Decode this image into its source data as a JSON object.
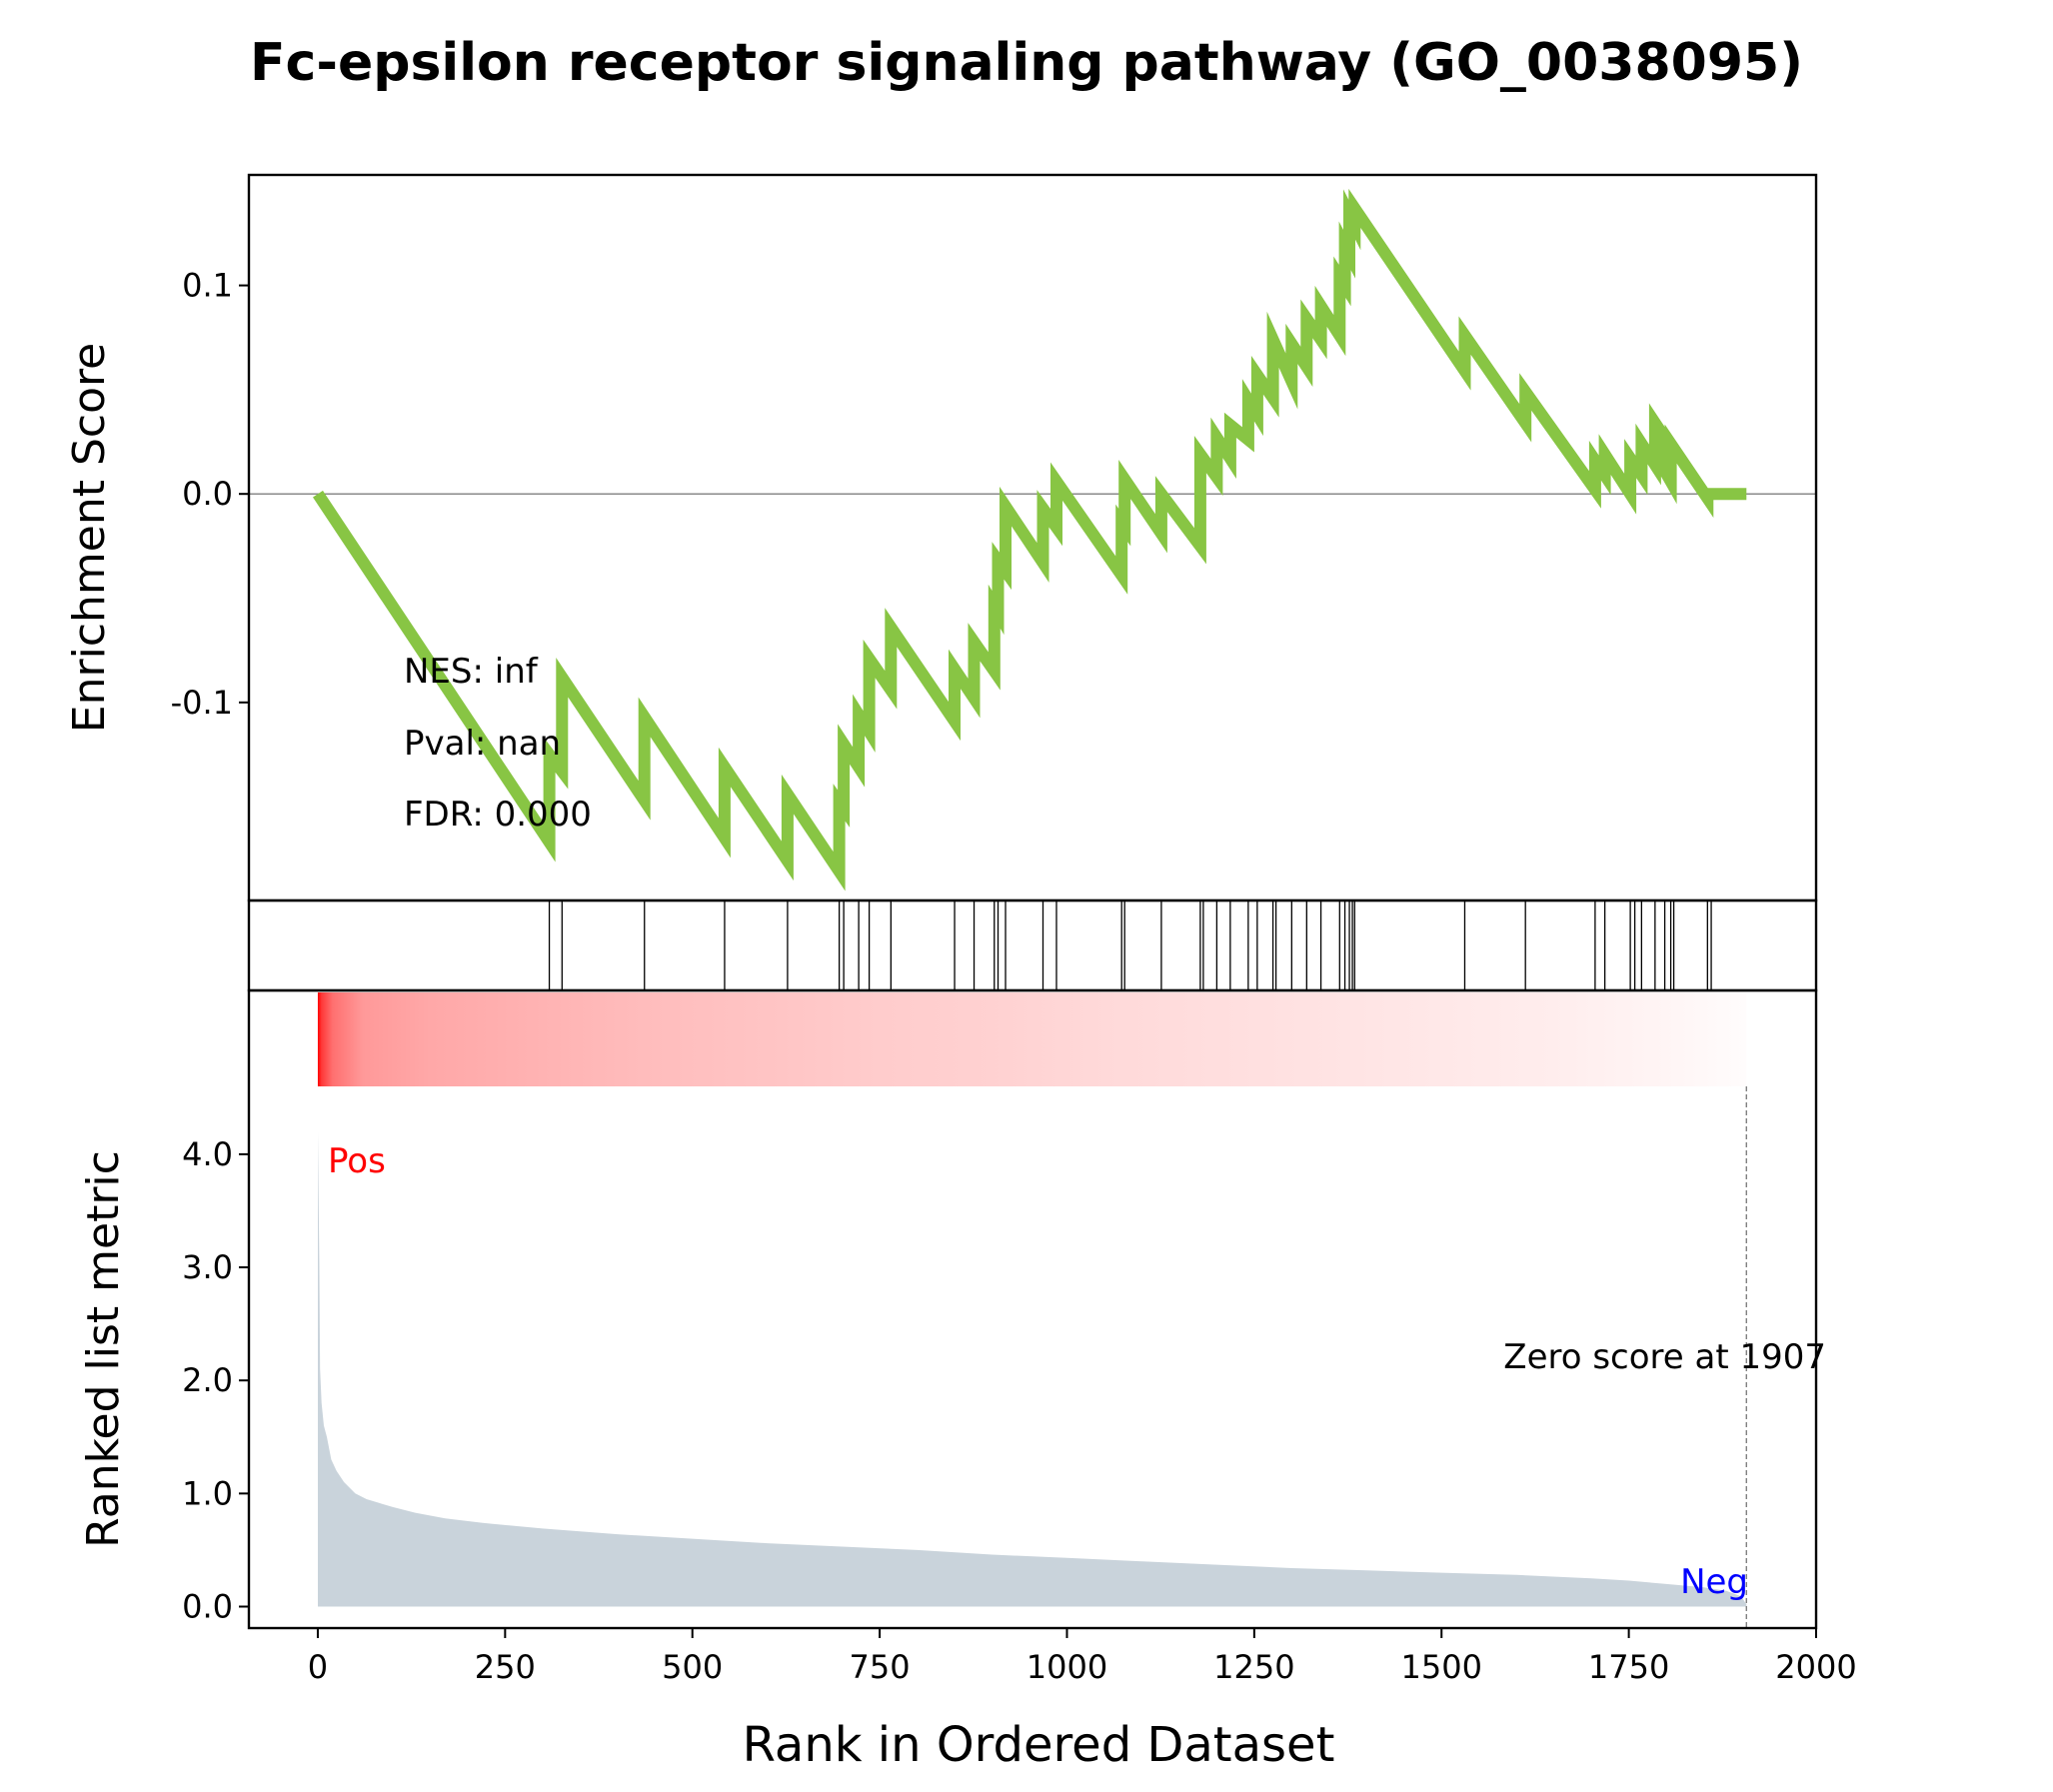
{
  "figure": {
    "title": "Fc-epsilon receptor signaling pathway (GO_0038095)",
    "annotations": {
      "nes": "NES: inf",
      "pval": "Pval: nan",
      "fdr": "FDR: 0.000",
      "pos": "Pos",
      "neg": "Neg",
      "zero_score": "Zero score at 1907"
    },
    "colors": {
      "es_line": "#88C544",
      "metric_fill": "#C9D3DB",
      "pos_label": "#FF0000",
      "neg_label": "#0000FF",
      "heat_start": "#FF0000",
      "heat_end": "#FFFFFF"
    }
  },
  "chart_data": [
    {
      "type": "line",
      "name": "enrichment-score",
      "ylabel": "Enrichment Score",
      "xlim": [
        -92,
        2000
      ],
      "ylim": [
        -0.195,
        0.153
      ],
      "yticks": [
        0.1,
        0.0,
        -0.1
      ],
      "ytick_labels": [
        "0.1",
        "0.0",
        "-0.1"
      ],
      "hline": 0.0,
      "x": [
        0,
        309,
        309,
        326,
        326,
        436,
        436,
        543,
        543,
        627,
        627,
        696,
        696,
        702,
        702,
        722,
        722,
        736,
        736,
        765,
        765,
        850,
        850,
        876,
        876,
        903,
        903,
        908,
        908,
        918,
        918,
        968,
        968,
        986,
        986,
        1073,
        1073,
        1077,
        1077,
        1126,
        1126,
        1178,
        1178,
        1200,
        1200,
        1218,
        1218,
        1242,
        1242,
        1254,
        1254,
        1275,
        1275,
        1300,
        1300,
        1320,
        1320,
        1339,
        1339,
        1364,
        1364,
        1371,
        1371,
        1377,
        1377,
        1384,
        1384,
        1531,
        1531,
        1612,
        1612,
        1705,
        1705,
        1718,
        1718,
        1752,
        1752,
        1767,
        1767,
        1785,
        1785,
        1798,
        1798,
        1806,
        1806,
        1855,
        1855,
        1907
      ],
      "y": [
        0.0,
        -0.167,
        -0.125,
        -0.133,
        -0.088,
        -0.147,
        -0.107,
        -0.165,
        -0.131,
        -0.176,
        -0.144,
        -0.181,
        -0.148,
        -0.151,
        -0.12,
        -0.131,
        -0.106,
        -0.114,
        -0.079,
        -0.094,
        -0.064,
        -0.109,
        -0.084,
        -0.098,
        -0.071,
        -0.085,
        -0.054,
        -0.057,
        -0.032,
        -0.037,
        -0.006,
        -0.033,
        -0.007,
        -0.016,
        0.006,
        -0.039,
        -0.014,
        -0.016,
        0.007,
        -0.019,
        0.0,
        -0.025,
        0.019,
        0.008,
        0.027,
        0.017,
        0.033,
        0.026,
        0.045,
        0.038,
        0.057,
        0.046,
        0.074,
        0.054,
        0.072,
        0.061,
        0.084,
        0.074,
        0.09,
        0.076,
        0.104,
        0.1,
        0.119,
        0.115,
        0.134,
        0.129,
        0.137,
        0.059,
        0.076,
        0.034,
        0.049,
        0.002,
        0.016,
        0.009,
        0.019,
        0.0,
        0.017,
        0.009,
        0.024,
        0.014,
        0.034,
        0.027,
        0.011,
        0.006,
        0.024,
        -0.002,
        0.0,
        0.0
      ]
    },
    {
      "type": "hits",
      "name": "gene-set-hits",
      "xlim": [
        -92,
        2000
      ],
      "x": [
        309,
        326,
        436,
        543,
        627,
        696,
        702,
        722,
        736,
        765,
        850,
        876,
        903,
        908,
        918,
        968,
        986,
        1073,
        1077,
        1126,
        1178,
        1182,
        1200,
        1218,
        1242,
        1254,
        1275,
        1279,
        1300,
        1320,
        1339,
        1364,
        1371,
        1377,
        1381,
        1384,
        1531,
        1612,
        1705,
        1718,
        1752,
        1758,
        1767,
        1785,
        1798,
        1806,
        1810,
        1855,
        1860
      ]
    },
    {
      "type": "heatmap",
      "name": "rank-heatmap",
      "xlim": [
        -92,
        2000
      ],
      "range": [
        0,
        1907
      ],
      "stops": [
        [
          0,
          1.0
        ],
        [
          5,
          0.78
        ],
        [
          20,
          0.56
        ],
        [
          60,
          0.4
        ],
        [
          150,
          0.34
        ],
        [
          300,
          0.3
        ],
        [
          450,
          0.26
        ],
        [
          600,
          0.23
        ],
        [
          750,
          0.2
        ],
        [
          900,
          0.18
        ],
        [
          1050,
          0.15
        ],
        [
          1200,
          0.13
        ],
        [
          1350,
          0.11
        ],
        [
          1500,
          0.09
        ],
        [
          1650,
          0.07
        ],
        [
          1800,
          0.04
        ],
        [
          1907,
          0.01
        ]
      ]
    },
    {
      "type": "area",
      "name": "ranked-list-metric",
      "xlabel": "Rank in Ordered Dataset",
      "ylabel": "Ranked list metric",
      "xlim": [
        -92,
        2000
      ],
      "ylim": [
        -0.19,
        4.6
      ],
      "xticks": [
        0,
        250,
        500,
        750,
        1000,
        1250,
        1500,
        1750,
        2000
      ],
      "xtick_labels": [
        "0",
        "250",
        "500",
        "750",
        "1000",
        "1250",
        "1500",
        "1750",
        "2000"
      ],
      "yticks": [
        0.0,
        1.0,
        2.0,
        3.0,
        4.0
      ],
      "ytick_labels": [
        "0.0",
        "1.0",
        "2.0",
        "3.0",
        "4.0"
      ],
      "zero_line_x": 1907,
      "x": [
        0,
        2,
        3,
        5,
        8,
        12,
        18,
        25,
        35,
        50,
        65,
        80,
        100,
        130,
        170,
        220,
        300,
        400,
        500,
        600,
        700,
        800,
        900,
        1000,
        1100,
        1200,
        1300,
        1400,
        1500,
        1600,
        1700,
        1750,
        1800,
        1850,
        1880,
        1900,
        1907
      ],
      "y": [
        4.2,
        3.0,
        2.1,
        1.8,
        1.6,
        1.5,
        1.3,
        1.2,
        1.1,
        1.0,
        0.95,
        0.92,
        0.88,
        0.83,
        0.78,
        0.74,
        0.69,
        0.64,
        0.6,
        0.56,
        0.53,
        0.5,
        0.46,
        0.43,
        0.4,
        0.37,
        0.34,
        0.32,
        0.3,
        0.28,
        0.25,
        0.23,
        0.2,
        0.17,
        0.14,
        0.09,
        0.02
      ]
    }
  ]
}
